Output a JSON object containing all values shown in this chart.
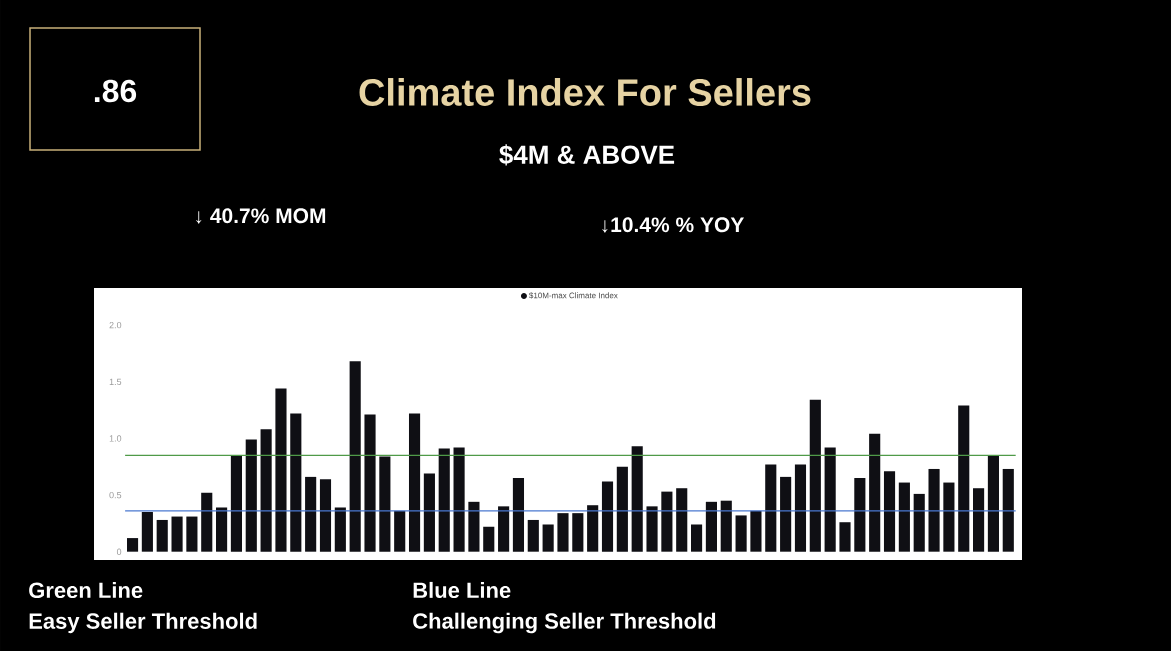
{
  "chart_data": {
    "type": "bar",
    "title": "Climate Index For Sellers",
    "subtitle": "$4M  & ABOVE",
    "categories": [
      null,
      null,
      null,
      null,
      null,
      null,
      null,
      null,
      null,
      null,
      null,
      null,
      null,
      null,
      null,
      null,
      null,
      null,
      null,
      null,
      null,
      null,
      null,
      null,
      null,
      null,
      null,
      null,
      null,
      null,
      null,
      null,
      null,
      null,
      null,
      null,
      null,
      null,
      null,
      null,
      null,
      null,
      null,
      null,
      null,
      null,
      null,
      null,
      null,
      null,
      null,
      null,
      null,
      null,
      null,
      null,
      null,
      null,
      null,
      null
    ],
    "series": [
      {
        "name": "$10M-max Climate Index",
        "color": "#0f0f14",
        "values": [
          0.12,
          0.35,
          0.28,
          0.31,
          0.31,
          0.52,
          0.39,
          0.85,
          0.99,
          1.08,
          1.44,
          1.22,
          0.66,
          0.64,
          0.39,
          1.68,
          1.21,
          0.84,
          0.36,
          1.22,
          0.69,
          0.91,
          0.92,
          0.44,
          0.22,
          0.4,
          0.65,
          0.28,
          0.24,
          0.34,
          0.34,
          0.41,
          0.62,
          0.75,
          0.93,
          0.4,
          0.53,
          0.56,
          0.24,
          0.44,
          0.45,
          0.32,
          0.36,
          0.77,
          0.66,
          0.77,
          1.34,
          0.92,
          0.26,
          0.65,
          1.04,
          0.71,
          0.61,
          0.51,
          0.73,
          0.61,
          1.29,
          0.56,
          0.85,
          0.73
        ]
      }
    ],
    "ylim": [
      0,
      2.3
    ],
    "yticks": [
      {
        "value": 0,
        "label": "0"
      },
      {
        "value": 0.5,
        "label": "0.5"
      },
      {
        "value": 1,
        "label": "1.0"
      },
      {
        "value": 1.5,
        "label": "1.5"
      },
      {
        "value": 2,
        "label": "2.0"
      }
    ],
    "ref_lines": [
      {
        "axis": "y",
        "value": 0.85,
        "color": "#4f9a48"
      },
      {
        "axis": "y",
        "value": 0.36,
        "color": "#4a78d0"
      }
    ],
    "legend": "top",
    "annotations": [
      ".86",
      "↓ 40.7% MOM",
      "↓10.4% % YOY",
      "Green Line",
      "Easy Seller Threshold",
      "Blue Line",
      "Challenging Seller Threshold"
    ]
  }
}
